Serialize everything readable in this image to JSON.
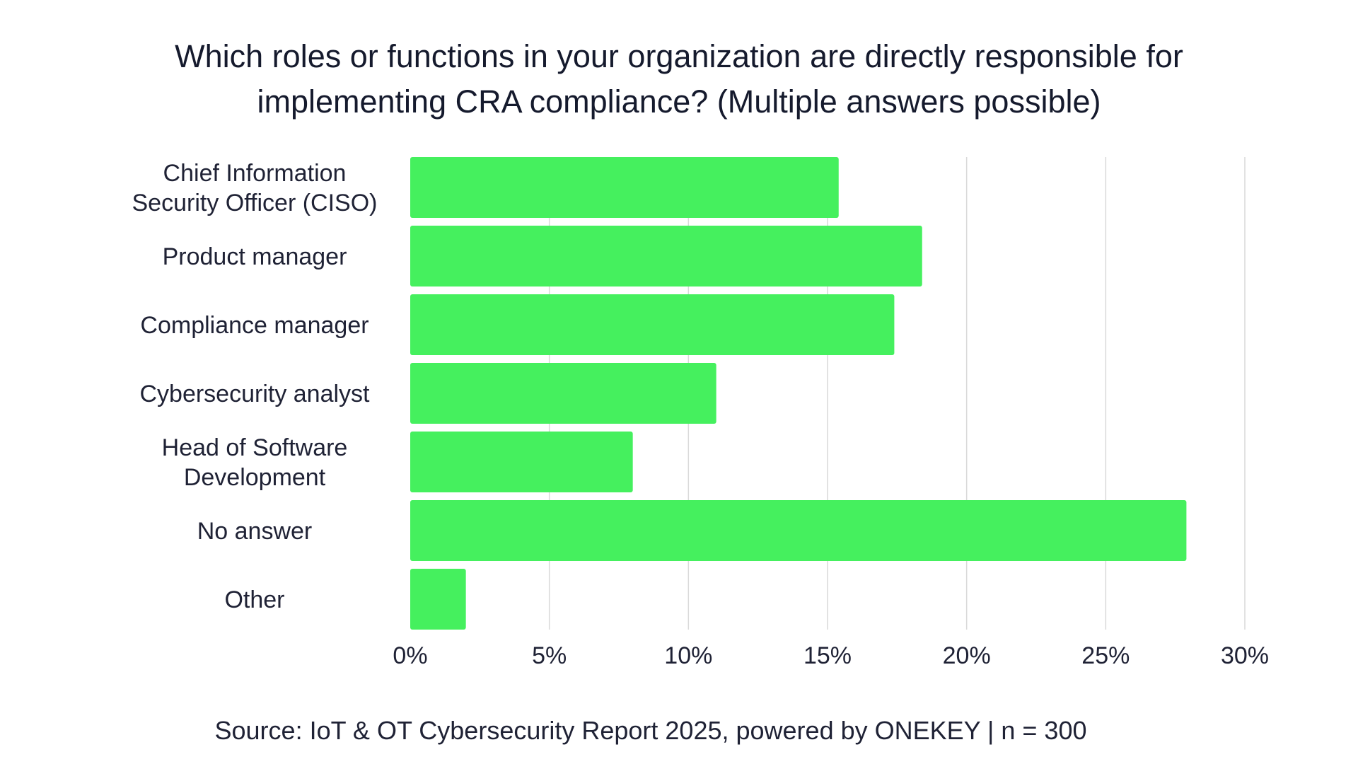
{
  "chart_data": {
    "type": "bar",
    "orientation": "horizontal",
    "title": "Which roles or functions in your organization are directly responsible for\nimplementing CRA compliance? (Multiple answers possible)",
    "categories": [
      "Chief Information Security Officer (CISO)",
      "Product manager",
      "Compliance manager",
      "Cybersecurity analyst",
      "Head of Software Development",
      "No answer",
      "Other"
    ],
    "category_lines": [
      [
        "Chief Information",
        "Security Officer (CISO)"
      ],
      [
        "Product manager"
      ],
      [
        "Compliance manager"
      ],
      [
        "Cybersecurity analyst"
      ],
      [
        "Head of Software",
        "Development"
      ],
      [
        "No answer"
      ],
      [
        "Other"
      ]
    ],
    "values": [
      15.4,
      18.4,
      17.4,
      11.0,
      8.0,
      27.9,
      2.0
    ],
    "xlim": [
      0,
      30
    ],
    "xticks": [
      0,
      5,
      10,
      15,
      20,
      25,
      30
    ],
    "xtick_labels": [
      "0%",
      "5%",
      "10%",
      "15%",
      "20%",
      "25%",
      "30%"
    ],
    "grid": true,
    "xlabel": "",
    "ylabel": "",
    "legend": "none",
    "colors": {
      "bar": "#45f05e",
      "grid": "#d9d9d9",
      "text": "#1f2235"
    },
    "source": "Source: IoT & OT Cybersecurity Report 2025, powered by ONEKEY | n = 300"
  }
}
